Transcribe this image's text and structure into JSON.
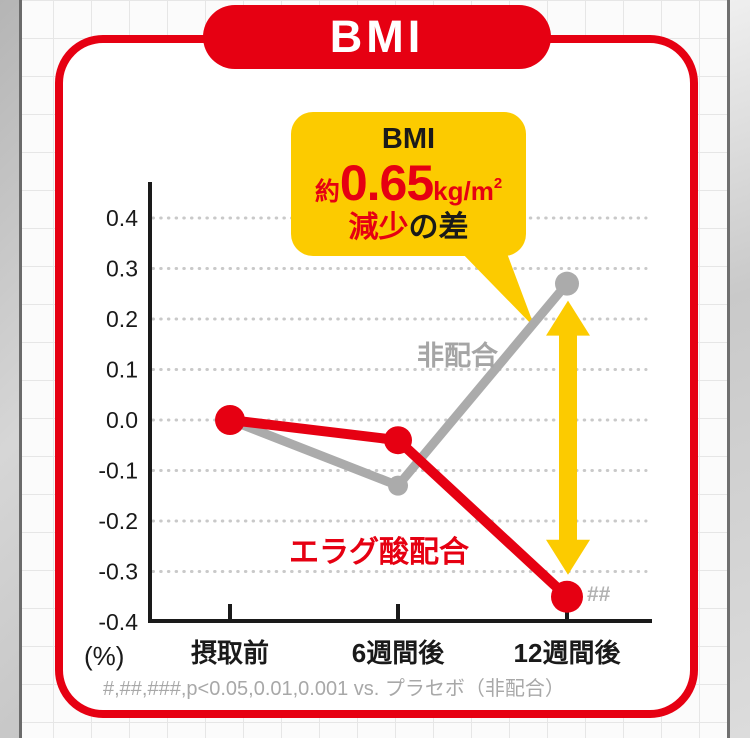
{
  "header": {
    "title": "BMI"
  },
  "callout": {
    "line1": "BMI",
    "approx": "約",
    "value": "0.65",
    "unit": "kg/m",
    "unit_sup": "2",
    "emphasis": "減少",
    "suffix": "の差"
  },
  "chart_data": {
    "type": "line",
    "categories": [
      "摂取前",
      "6週間後",
      "12週間後"
    ],
    "series": [
      {
        "name": "エラグ酸配合",
        "color": "#e60012",
        "values": [
          0.0,
          -0.04,
          -0.35
        ]
      },
      {
        "name": "非配合",
        "color": "#ababab",
        "values": [
          0.0,
          -0.13,
          0.27
        ]
      }
    ],
    "title": "BMI",
    "xlabel": "",
    "ylabel": "(%)",
    "ylim": [
      -0.4,
      0.4
    ],
    "yticks": [
      "0.4",
      "0.3",
      "0.2",
      "0.1",
      "0.0",
      "-0.1",
      "-0.2",
      "-0.3",
      "-0.4"
    ],
    "grid": "dotted-horizontal",
    "legend_position": "inline-labels",
    "annotations": {
      "significance_marker": "##",
      "difference_note": "約0.65kg/m2 減少の差 (12週間後, エラグ酸配合 vs 非配合)"
    }
  },
  "footnote": {
    "text": "#,##,###,p<0.05,0.01,0.001 vs. プラセボ（非配合）"
  },
  "colors": {
    "accent_red": "#e60012",
    "highlight_yellow": "#fccb00",
    "gray_line": "#ababab",
    "gray_text": "#a5a5a5",
    "axis_black": "#1a1a1a",
    "gridline_gray": "#c9c9c9"
  }
}
